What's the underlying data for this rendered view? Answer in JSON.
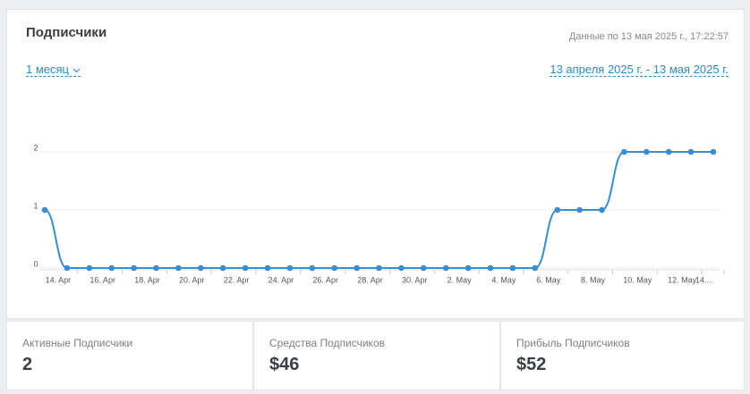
{
  "header": {
    "title": "Подписчики",
    "updated": "Данные по 13 мая 2025 г., 17:22:57",
    "period": "1 месяц",
    "range": "13 апреля 2025 г. - 13 мая 2025 г."
  },
  "chart_data": {
    "type": "line",
    "categories": [
      null,
      "14. Apr",
      null,
      "16. Apr",
      null,
      "18. Apr",
      null,
      "20. Apr",
      null,
      "22. Apr",
      null,
      "24. Apr",
      null,
      "26. Apr",
      null,
      "28. Apr",
      null,
      "30. Apr",
      null,
      "2. May",
      null,
      "4. May",
      null,
      "6. May",
      null,
      "8. May",
      null,
      "10. May",
      null,
      "12. May",
      "14...."
    ],
    "values": [
      1,
      0,
      0,
      0,
      0,
      0,
      0,
      0,
      0,
      0,
      0,
      0,
      0,
      0,
      0,
      0,
      0,
      0,
      0,
      0,
      0,
      0,
      0,
      1,
      1,
      1,
      2,
      2,
      2,
      2,
      2
    ],
    "color": "#3d8ccc",
    "ylim": [
      0,
      2
    ],
    "yticks": [
      0,
      1,
      2
    ],
    "grid": true
  },
  "stats": [
    {
      "label": "Активные Подписчики",
      "value": "2"
    },
    {
      "label": "Средства Подписчиков",
      "value": "$46"
    },
    {
      "label": "Прибыль Подписчиков",
      "value": "$52"
    }
  ]
}
